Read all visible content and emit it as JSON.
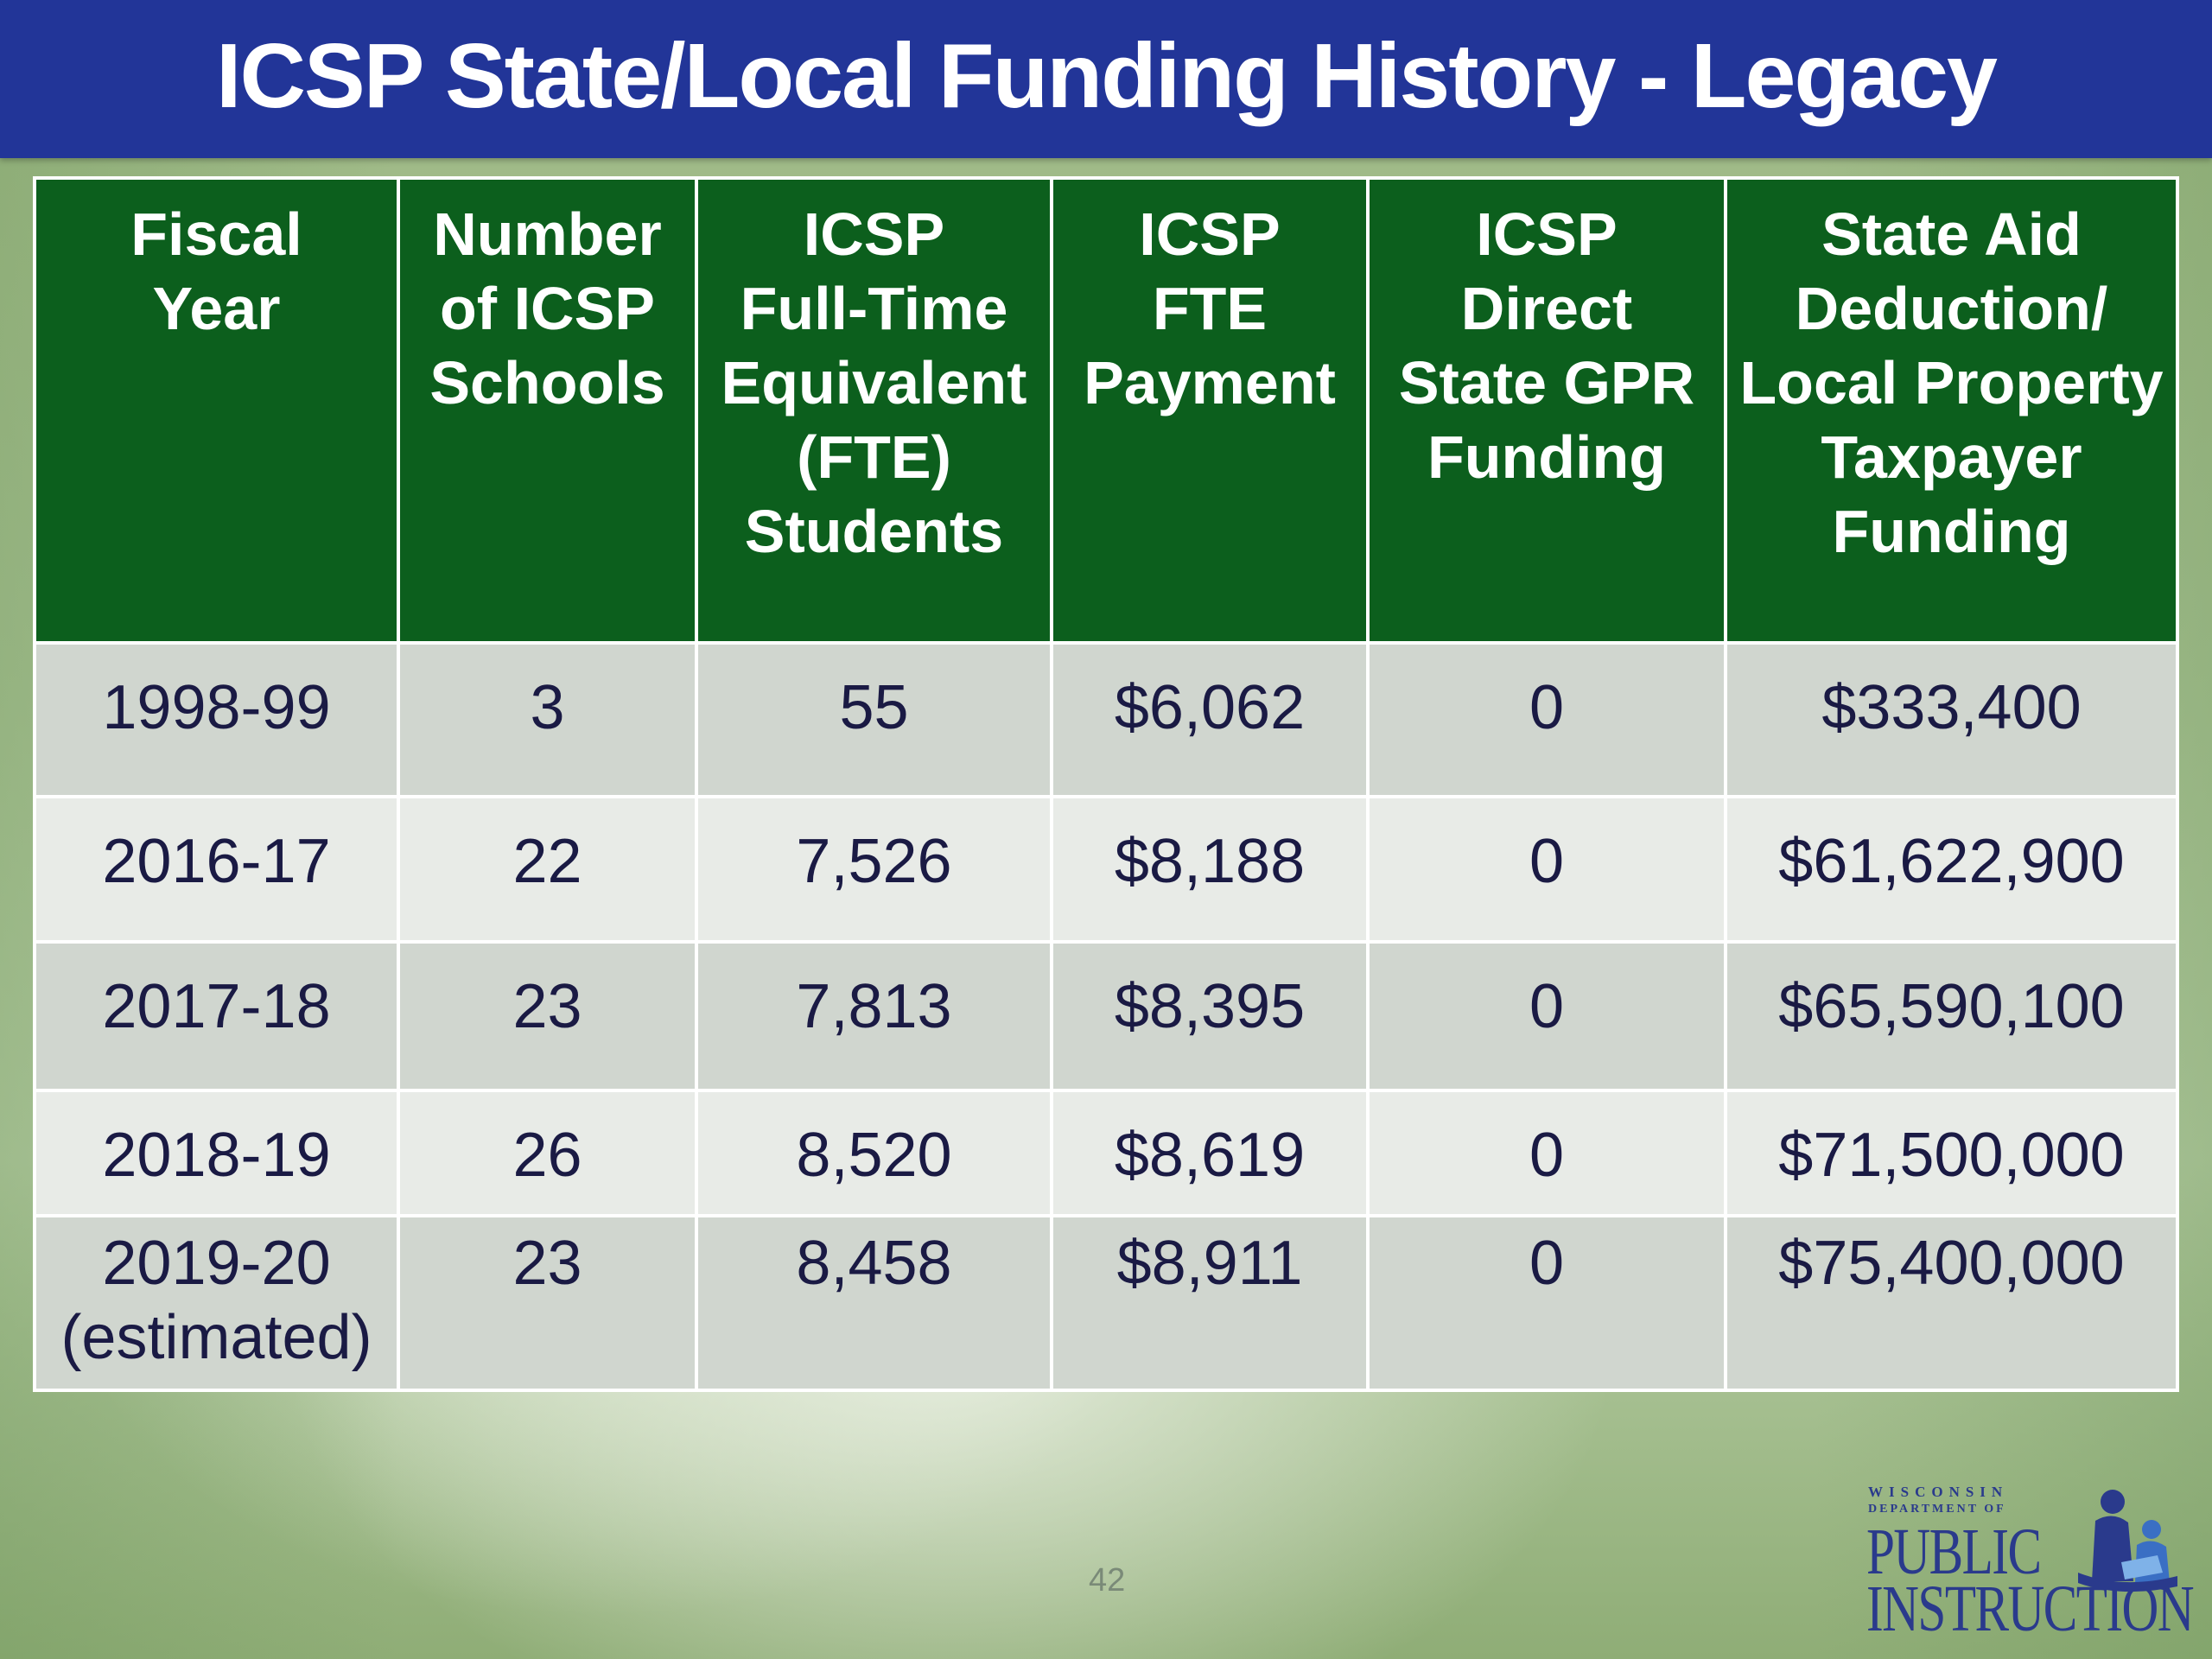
{
  "title": "ICSP State/Local Funding History - Legacy",
  "table": {
    "headers": [
      [
        "Fiscal",
        "Year"
      ],
      [
        "Number",
        "of ICSP",
        "Schools"
      ],
      [
        "ICSP",
        "Full-Time",
        "Equivalent",
        "(FTE)",
        "Students"
      ],
      [
        "ICSP",
        "FTE",
        "Payment"
      ],
      [
        "ICSP",
        "Direct",
        "State GPR",
        "Funding"
      ],
      [
        "State Aid",
        "Deduction/",
        "Local Property",
        "Taxpayer",
        "Funding"
      ]
    ],
    "rows": [
      {
        "year": "1998-99",
        "year_note": "",
        "schools": "3",
        "fte": "55",
        "payment": "$6,062",
        "gpr": "0",
        "local": "$333,400"
      },
      {
        "year": "2016-17",
        "year_note": "",
        "schools": "22",
        "fte": "7,526",
        "payment": "$8,188",
        "gpr": "0",
        "local": "$61,622,900"
      },
      {
        "year": "2017-18",
        "year_note": "",
        "schools": "23",
        "fte": "7,813",
        "payment": "$8,395",
        "gpr": "0",
        "local": "$65,590,100"
      },
      {
        "year": "2018-19",
        "year_note": "",
        "schools": "26",
        "fte": "8,520",
        "payment": "$8,619",
        "gpr": "0",
        "local": "$71,500,000"
      },
      {
        "year": "2019-20",
        "year_note": "(estimated)",
        "schools": "23",
        "fte": "8,458",
        "payment": "$8,911",
        "gpr": "0",
        "local": "$75,400,000"
      }
    ]
  },
  "page_number": "42",
  "logo": {
    "line1": "WISCONSIN",
    "line2": "DEPARTMENT OF",
    "line3": "PUBLIC",
    "line4": "INSTRUCTION"
  },
  "colors": {
    "title_bar": "#223598",
    "header_green": "#0c5f1d",
    "row_dark": "#d0d6cf",
    "row_light": "#e8ebe7",
    "logo_blue": "#2a3a8c"
  }
}
